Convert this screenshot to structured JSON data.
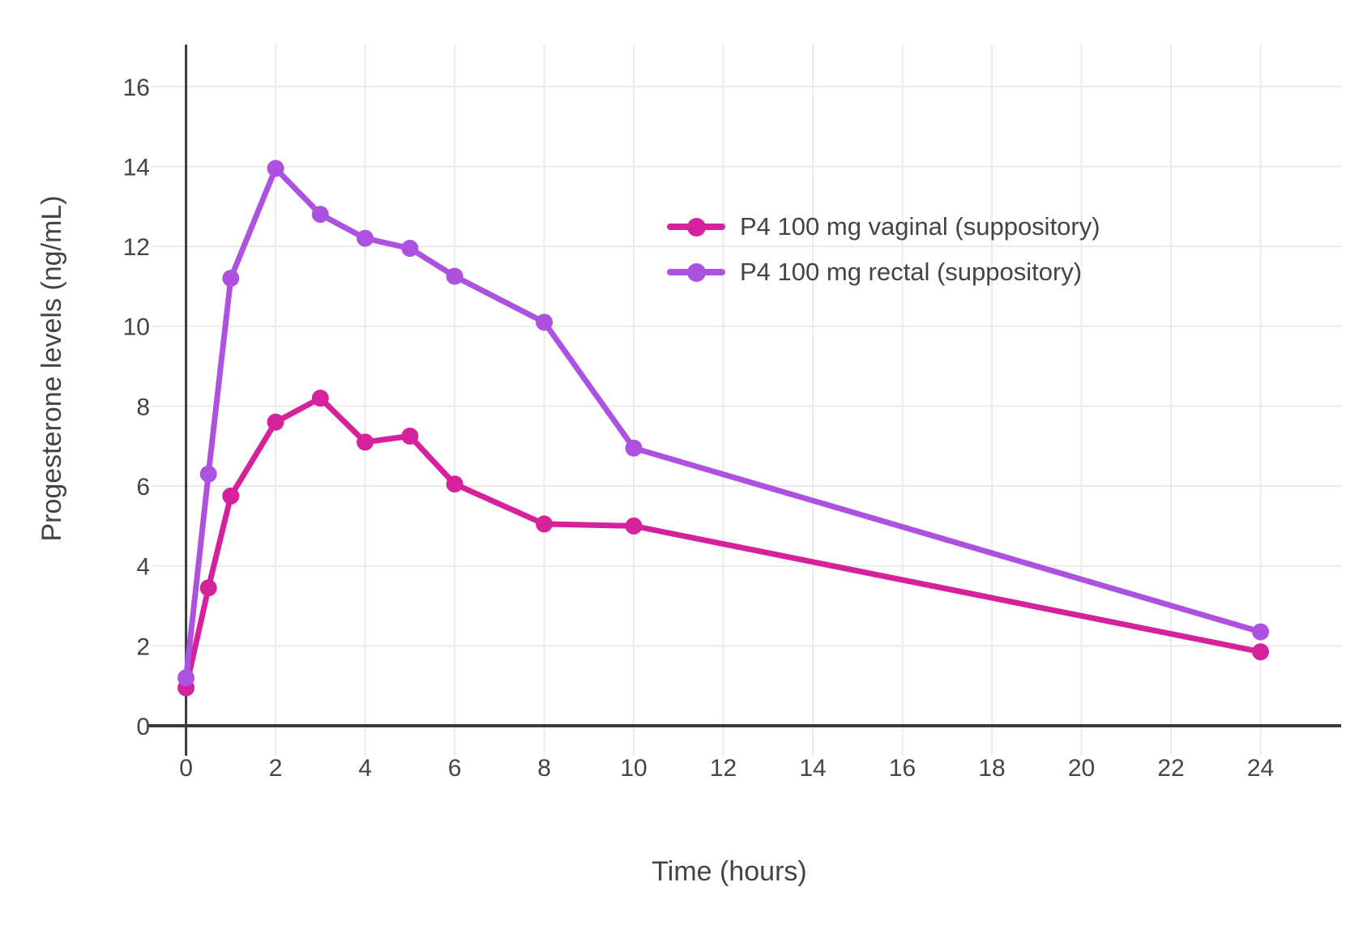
{
  "chart_data": {
    "type": "line",
    "title": "",
    "xlabel": "Time (hours)",
    "ylabel": "Progesterone levels (ng/mL)",
    "x_ticks": [
      0,
      2,
      4,
      6,
      8,
      10,
      12,
      14,
      16,
      18,
      20,
      22,
      24
    ],
    "y_ticks": [
      0,
      2,
      4,
      6,
      8,
      10,
      12,
      14,
      16
    ],
    "xlim": [
      -0.3,
      25.8
    ],
    "ylim": [
      -0.75,
      17.05
    ],
    "grid": true,
    "legend_position": "inside upper right",
    "colors": {
      "grid": "#ebebeb",
      "axis_line": "#3a3a3a",
      "tick_text": "#444444",
      "background": "#ffffff"
    },
    "series": [
      {
        "name": "P4 100 mg vaginal (suppository)",
        "color": "#d6219c",
        "x": [
          0,
          0.5,
          1,
          2,
          3,
          4,
          5,
          6,
          8,
          10,
          24
        ],
        "y": [
          0.95,
          3.45,
          5.75,
          7.6,
          8.2,
          7.1,
          7.25,
          6.05,
          5.05,
          5.0,
          1.85
        ]
      },
      {
        "name": "P4 100 mg rectal (suppository)",
        "color": "#ad52e0",
        "x": [
          0,
          0.5,
          1,
          2,
          3,
          4,
          5,
          6,
          8,
          10,
          24
        ],
        "y": [
          1.2,
          6.3,
          11.2,
          13.95,
          12.8,
          12.2,
          11.95,
          11.25,
          10.1,
          6.95,
          2.35
        ]
      }
    ]
  }
}
